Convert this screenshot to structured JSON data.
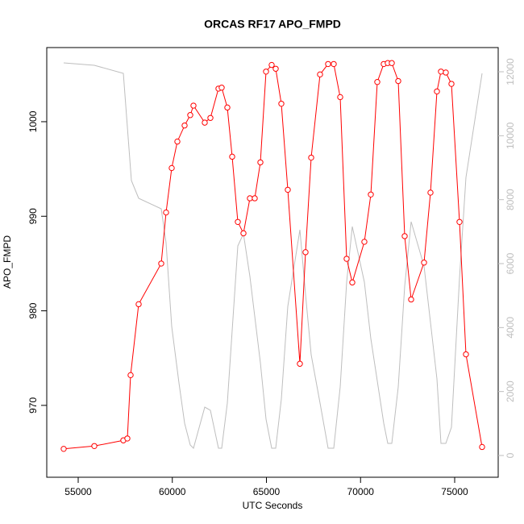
{
  "chart_data": {
    "type": "line",
    "title": "ORCAS RF17 APO_FMPD",
    "xlabel": "UTC Seconds",
    "ylabel": "APO_FMPD",
    "xlim": [
      53330,
      77313
    ],
    "ylim": [
      962.4,
      1007.84
    ],
    "y2lim": [
      -681,
      12757
    ],
    "xticks": [
      55000,
      60000,
      65000,
      70000,
      75000
    ],
    "yticks": [
      970,
      980,
      990,
      1000
    ],
    "y2ticks": [
      0,
      2000,
      4000,
      6000,
      8000,
      10000,
      12000
    ],
    "series": [
      {
        "color": "#ff0000",
        "marker": "circle",
        "x": [
          54229,
          55857,
          57398,
          57612,
          57784,
          58212,
          59411,
          59668,
          59968,
          60268,
          60653,
          60953,
          61124,
          61724,
          62024,
          62452,
          62623,
          62923,
          63180,
          63480,
          63780,
          64122,
          64379,
          64679,
          64979,
          65278,
          65493,
          65792,
          66135,
          66777,
          67077,
          67377,
          67848,
          68276,
          68576,
          68919,
          69261,
          69561,
          70203,
          70546,
          70889,
          71231,
          71445,
          71660,
          72002,
          72345,
          72687,
          73373,
          73715,
          74058,
          74272,
          74529,
          74829,
          75257,
          75600,
          76456
        ],
        "values": [
          965.4,
          965.7,
          966.3,
          966.5,
          973.2,
          980.7,
          985.0,
          990.4,
          995.1,
          997.9,
          999.6,
          1000.7,
          1001.7,
          999.9,
          1000.4,
          1003.5,
          1003.6,
          1001.5,
          996.3,
          989.4,
          988.2,
          991.9,
          991.9,
          995.7,
          1005.3,
          1006.0,
          1005.6,
          1001.9,
          992.8,
          974.4,
          986.2,
          996.2,
          1005.0,
          1006.1,
          1006.1,
          1002.6,
          985.5,
          983.0,
          987.3,
          992.3,
          1004.2,
          1006.1,
          1006.2,
          1006.2,
          1004.3,
          987.9,
          981.2,
          985.1,
          992.5,
          1003.2,
          1005.3,
          1005.2,
          1004.0,
          989.4,
          975.4,
          965.6
        ]
      },
      {
        "color": "#bebebe",
        "axis": "y2",
        "x": [
          54229,
          55857,
          57398,
          57826,
          58212,
          59411,
          59668,
          59968,
          60353,
          60653,
          60953,
          61124,
          61724,
          62024,
          62452,
          62623,
          62923,
          63480,
          63780,
          64122,
          64679,
          64979,
          65278,
          65493,
          65792,
          66135,
          66777,
          67077,
          67377,
          67848,
          68276,
          68576,
          68919,
          69261,
          69561,
          70203,
          70546,
          71231,
          71445,
          71660,
          72002,
          72345,
          72687,
          73373,
          73715,
          74058,
          74272,
          74529,
          74829,
          75257,
          75600,
          76456
        ],
        "values": [
          12277,
          12202,
          11950,
          8597,
          8042,
          7715,
          6656,
          4034,
          2269,
          1008,
          328,
          227,
          1513,
          1412,
          227,
          227,
          1639,
          6555,
          6933,
          5597,
          2899,
          1134,
          227,
          227,
          1765,
          4664,
          7059,
          5042,
          3151,
          1639,
          227,
          227,
          2143,
          5420,
          7160,
          5420,
          3656,
          1008,
          378,
          378,
          2143,
          5294,
          7311,
          5924,
          4160,
          2395,
          378,
          378,
          882,
          5546,
          8697,
          11950
        ]
      }
    ]
  }
}
